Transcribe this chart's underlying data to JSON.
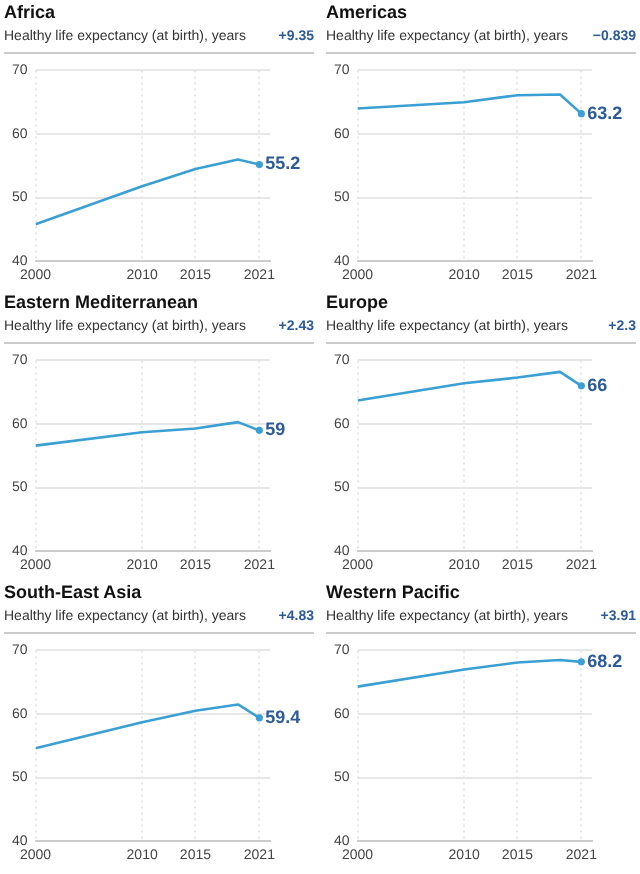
{
  "chart_data": [
    {
      "type": "line",
      "title": "Africa",
      "subtitle": "Healthy life expectancy (at birth), years",
      "x": [
        2000,
        2010,
        2015,
        2019,
        2021
      ],
      "series": [
        {
          "color": "#3a9fd3",
          "values": [
            45.8,
            51.8,
            54.5,
            56.0,
            55.2
          ],
          "value_labels": [
            null,
            null,
            null,
            null,
            "55.2"
          ]
        }
      ],
      "xlim": [
        2000,
        2022
      ],
      "xticks": [
        2000,
        2010,
        2015,
        2021
      ],
      "ylim": [
        40,
        70
      ],
      "yticks": [
        40,
        50,
        60,
        70
      ],
      "grid": true,
      "annotations": [
        "+9.35"
      ]
    },
    {
      "type": "line",
      "title": "Americas",
      "subtitle": "Healthy life expectancy (at birth), years",
      "x": [
        2000,
        2010,
        2015,
        2019,
        2021
      ],
      "series": [
        {
          "color": "#3a9fd3",
          "values": [
            64.0,
            65.0,
            66.1,
            66.2,
            63.2
          ],
          "value_labels": [
            null,
            null,
            null,
            null,
            "63.2"
          ]
        }
      ],
      "xlim": [
        2000,
        2022
      ],
      "xticks": [
        2000,
        2010,
        2015,
        2021
      ],
      "ylim": [
        40,
        70
      ],
      "yticks": [
        40,
        50,
        60,
        70
      ],
      "grid": true,
      "annotations": [
        "−0.839"
      ]
    },
    {
      "type": "line",
      "title": "Eastern Mediterranean",
      "subtitle": "Healthy life expectancy (at birth), years",
      "x": [
        2000,
        2010,
        2015,
        2019,
        2021
      ],
      "series": [
        {
          "color": "#3a9fd3",
          "values": [
            56.6,
            58.7,
            59.3,
            60.3,
            59.0
          ],
          "value_labels": [
            null,
            null,
            null,
            null,
            "59"
          ]
        }
      ],
      "xlim": [
        2000,
        2022
      ],
      "xticks": [
        2000,
        2010,
        2015,
        2021
      ],
      "ylim": [
        40,
        70
      ],
      "yticks": [
        40,
        50,
        60,
        70
      ],
      "grid": true,
      "annotations": [
        "+2.43"
      ]
    },
    {
      "type": "line",
      "title": "Europe",
      "subtitle": "Healthy life expectancy (at birth), years",
      "x": [
        2000,
        2010,
        2015,
        2019,
        2021
      ],
      "series": [
        {
          "color": "#3a9fd3",
          "values": [
            63.7,
            66.4,
            67.3,
            68.2,
            66.0
          ],
          "value_labels": [
            null,
            null,
            null,
            null,
            "66"
          ]
        }
      ],
      "xlim": [
        2000,
        2022
      ],
      "xticks": [
        2000,
        2010,
        2015,
        2021
      ],
      "ylim": [
        40,
        70
      ],
      "yticks": [
        40,
        50,
        60,
        70
      ],
      "grid": true,
      "annotations": [
        "+2.3"
      ]
    },
    {
      "type": "line",
      "title": "South-East Asia",
      "subtitle": "Healthy life expectancy (at birth), years",
      "x": [
        2000,
        2010,
        2015,
        2019,
        2021
      ],
      "series": [
        {
          "color": "#3a9fd3",
          "values": [
            54.6,
            58.7,
            60.5,
            61.5,
            59.4
          ],
          "value_labels": [
            null,
            null,
            null,
            null,
            "59.4"
          ]
        }
      ],
      "xlim": [
        2000,
        2022
      ],
      "xticks": [
        2000,
        2010,
        2015,
        2021
      ],
      "ylim": [
        40,
        70
      ],
      "yticks": [
        40,
        50,
        60,
        70
      ],
      "grid": true,
      "annotations": [
        "+4.83"
      ]
    },
    {
      "type": "line",
      "title": "Western Pacific",
      "subtitle": "Healthy life expectancy (at birth), years",
      "x": [
        2000,
        2010,
        2015,
        2019,
        2021
      ],
      "series": [
        {
          "color": "#3a9fd3",
          "values": [
            64.3,
            67.0,
            68.1,
            68.5,
            68.2
          ],
          "value_labels": [
            null,
            null,
            null,
            null,
            "68.2"
          ]
        }
      ],
      "xlim": [
        2000,
        2022
      ],
      "xticks": [
        2000,
        2010,
        2015,
        2021
      ],
      "ylim": [
        40,
        70
      ],
      "yticks": [
        40,
        50,
        60,
        70
      ],
      "grid": true,
      "annotations": [
        "+3.91"
      ]
    }
  ]
}
